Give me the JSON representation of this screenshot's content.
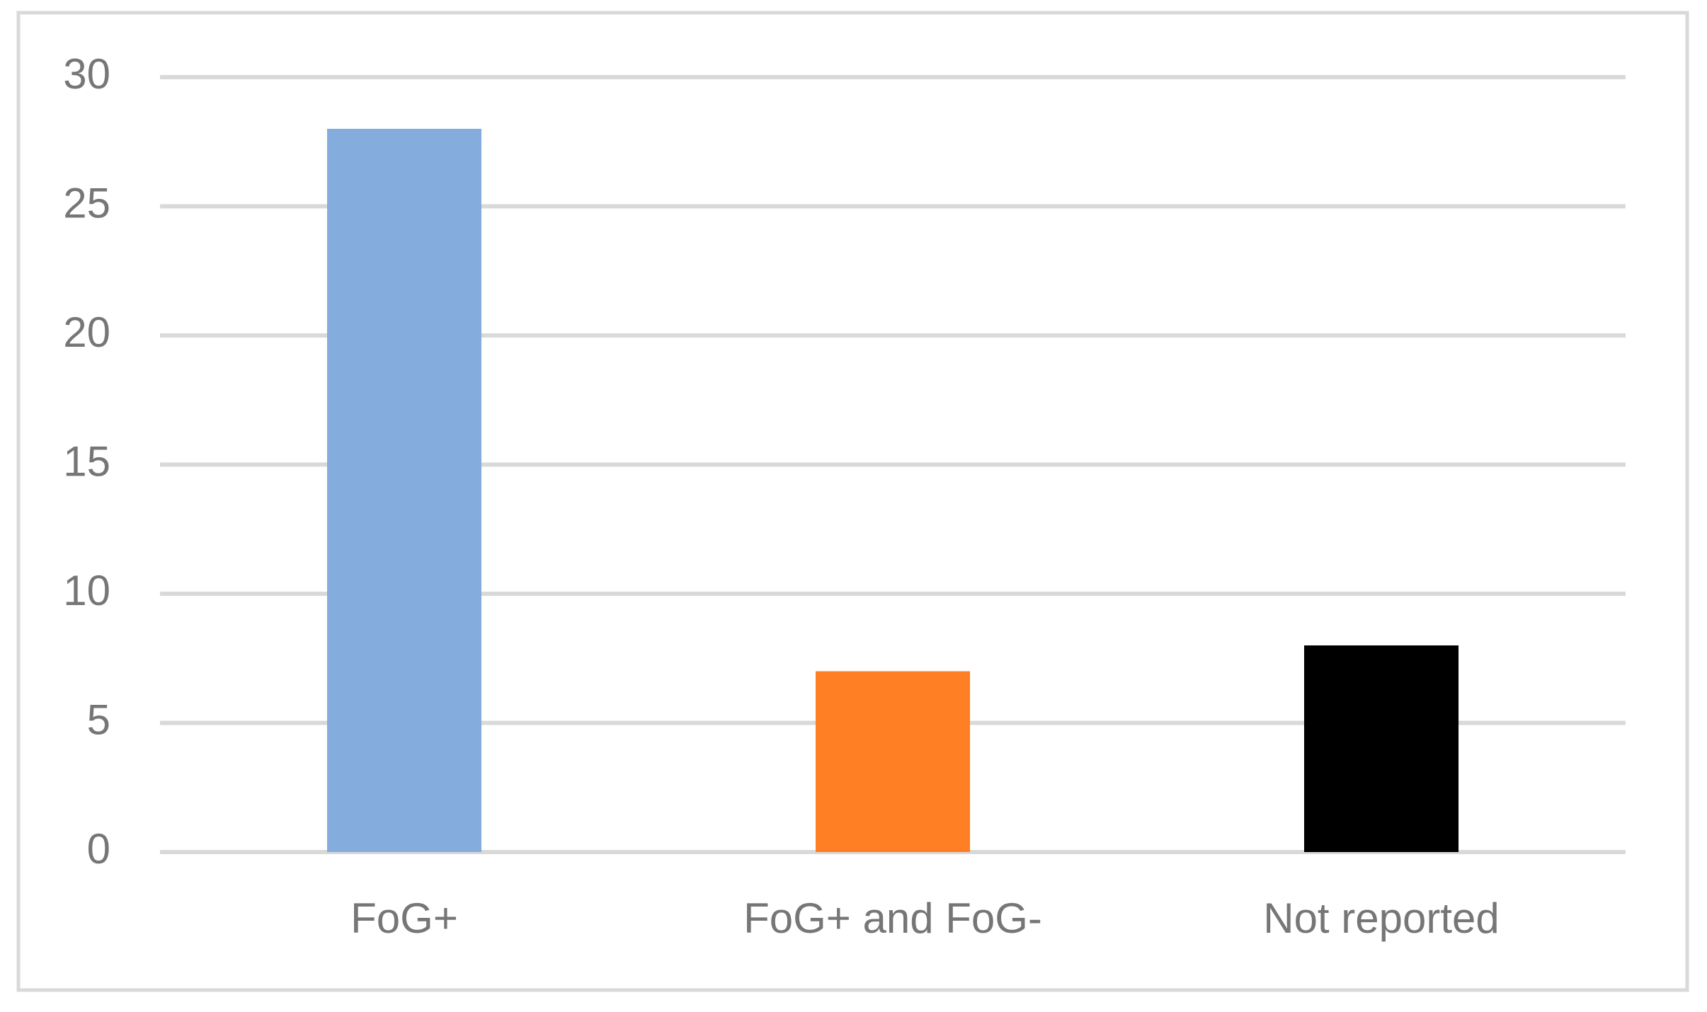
{
  "chart_data": {
    "type": "bar",
    "categories": [
      "FoG+",
      "FoG+ and FoG-",
      "Not reported"
    ],
    "values": [
      28,
      7,
      8
    ],
    "colors": [
      "#84acdd",
      "#fe7f24",
      "#000000"
    ],
    "ylim": [
      0,
      30
    ],
    "yticks": [
      0,
      5,
      10,
      15,
      20,
      25,
      30
    ],
    "grid": true
  }
}
